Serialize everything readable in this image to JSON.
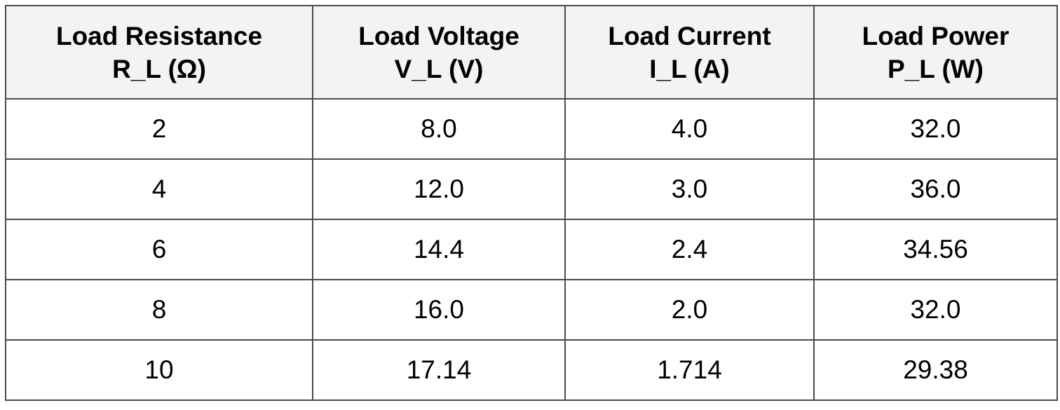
{
  "table": {
    "headers": [
      [
        "Load Resistance",
        "R_L (Ω)"
      ],
      [
        "Load Voltage",
        "V_L (V)"
      ],
      [
        "Load Current",
        "I_L (A)"
      ],
      [
        "Load Power",
        "P_L (W)"
      ]
    ],
    "rows": [
      [
        "2",
        "8.0",
        "4.0",
        "32.0"
      ],
      [
        "4",
        "12.0",
        "3.0",
        "36.0"
      ],
      [
        "6",
        "14.4",
        "2.4",
        "34.56"
      ],
      [
        "8",
        "16.0",
        "2.0",
        "32.0"
      ],
      [
        "10",
        "17.14",
        "1.714",
        "29.38"
      ]
    ]
  }
}
